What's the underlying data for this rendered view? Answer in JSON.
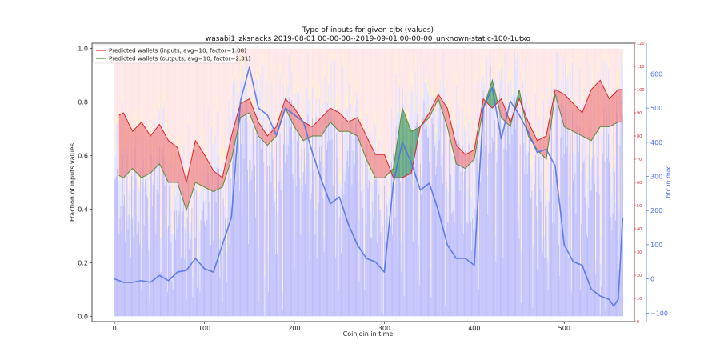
{
  "chart_data": {
    "type": "bar+line",
    "title_line1": "Type of inputs for given cjtx (values)",
    "title_line2": "wasabi1_zksnacks 2019-08-01 00-00-00--2019-09-01 00-00-00_unknown-static-100-1utxo",
    "xlabel": "Coinjoin in time",
    "ylabel": "Fraction of inputs values",
    "ylabel_right": "btc in mix",
    "xlim": [
      -25,
      578
    ],
    "ylim": [
      -0.02,
      1.02
    ],
    "ylim_red": [
      0,
      120
    ],
    "ylim_right": [
      -125,
      690
    ],
    "xticks": [
      "0",
      "100",
      "200",
      "300",
      "400",
      "500"
    ],
    "xtick_values": [
      0,
      100,
      200,
      300,
      400,
      500
    ],
    "yticks": [
      "0.0",
      "0.2",
      "0.4",
      "0.6",
      "0.8",
      "1.0"
    ],
    "ytick_values": [
      0.0,
      0.2,
      0.4,
      0.6,
      0.8,
      1.0
    ],
    "yticks_red": [
      "0",
      "10",
      "20",
      "30",
      "40",
      "50",
      "60",
      "70",
      "80",
      "90",
      "100",
      "110",
      "120"
    ],
    "ytick_red_values": [
      0,
      10,
      20,
      30,
      40,
      50,
      60,
      70,
      80,
      90,
      100,
      110,
      120
    ],
    "yticks_right": [
      "−100",
      "0",
      "100",
      "200",
      "300",
      "400",
      "500",
      "600"
    ],
    "ytick_right_values": [
      -100,
      0,
      100,
      200,
      300,
      400,
      500,
      600
    ],
    "n_coinjoins": 566,
    "legend": {
      "position": "top-left",
      "entries": [
        {
          "label": "Predicted wallets (inputs, avg=10, factor=1.08)",
          "color": "#d62728"
        },
        {
          "label": "Predicted wallets (outputs, avg=10, factor=2.31)",
          "color": "#2ca02c"
        }
      ]
    },
    "colors": {
      "bars_blue": "#7b7bf5",
      "bars_light": "#c8c8ff",
      "bars_yellow": "#ffe8a8",
      "bars_pink": "#ffcfcf",
      "inputs_line": "#d62728",
      "inputs_fill": "#f08080",
      "outputs_line": "#5b8a3a",
      "outputs_fill": "#3a9a5a",
      "btc_line": "#4a6fe3"
    },
    "series_inputs_wallets": {
      "x": [
        0,
        10,
        20,
        30,
        40,
        50,
        60,
        70,
        80,
        90,
        100,
        110,
        120,
        130,
        140,
        150,
        160,
        170,
        180,
        190,
        200,
        210,
        220,
        230,
        240,
        250,
        260,
        270,
        280,
        290,
        300,
        310,
        320,
        330,
        340,
        350,
        360,
        370,
        380,
        390,
        400,
        410,
        420,
        430,
        440,
        450,
        460,
        470,
        480,
        490,
        500,
        510,
        520,
        530,
        540,
        550,
        560
      ],
      "y": [
        88,
        90,
        82,
        86,
        80,
        85,
        78,
        75,
        60,
        78,
        72,
        65,
        62,
        80,
        94,
        96,
        86,
        80,
        84,
        96,
        92,
        86,
        84,
        88,
        92,
        90,
        86,
        88,
        80,
        72,
        72,
        62,
        62,
        64,
        84,
        90,
        98,
        92,
        76,
        72,
        74,
        96,
        92,
        96,
        86,
        96,
        86,
        78,
        80,
        100,
        98,
        94,
        90,
        100,
        104,
        96,
        100
      ]
    },
    "series_outputs_wallets": {
      "x": [
        0,
        10,
        20,
        30,
        40,
        50,
        60,
        70,
        80,
        90,
        100,
        110,
        120,
        130,
        140,
        150,
        160,
        170,
        180,
        190,
        200,
        210,
        220,
        230,
        240,
        250,
        260,
        270,
        280,
        290,
        300,
        310,
        320,
        330,
        340,
        350,
        360,
        370,
        380,
        390,
        400,
        410,
        420,
        430,
        440,
        450,
        460,
        470,
        480,
        490,
        500,
        510,
        520,
        530,
        540,
        550,
        560
      ],
      "y": [
        64,
        62,
        66,
        62,
        64,
        68,
        60,
        60,
        48,
        60,
        58,
        56,
        58,
        70,
        88,
        90,
        80,
        76,
        80,
        92,
        84,
        78,
        80,
        80,
        86,
        82,
        82,
        80,
        70,
        62,
        62,
        66,
        92,
        82,
        84,
        88,
        96,
        84,
        68,
        66,
        70,
        92,
        104,
        88,
        84,
        100,
        80,
        74,
        70,
        98,
        84,
        82,
        80,
        78,
        84,
        84,
        86
      ]
    },
    "series_btc_in_mix": {
      "x": [
        0,
        10,
        20,
        30,
        40,
        50,
        60,
        70,
        80,
        90,
        100,
        110,
        120,
        130,
        140,
        150,
        160,
        170,
        180,
        190,
        200,
        210,
        220,
        230,
        240,
        250,
        260,
        270,
        280,
        290,
        300,
        310,
        320,
        330,
        340,
        350,
        360,
        370,
        380,
        390,
        400,
        410,
        420,
        430,
        440,
        450,
        460,
        470,
        480,
        490,
        500,
        510,
        520,
        530,
        540,
        550,
        555,
        560,
        565
      ],
      "y": [
        0,
        -10,
        -10,
        -5,
        -10,
        10,
        -5,
        20,
        25,
        60,
        30,
        20,
        100,
        180,
        520,
        620,
        500,
        480,
        420,
        500,
        480,
        460,
        370,
        290,
        220,
        240,
        160,
        100,
        60,
        50,
        20,
        280,
        400,
        340,
        260,
        280,
        200,
        100,
        60,
        60,
        40,
        500,
        560,
        410,
        520,
        480,
        430,
        370,
        380,
        330,
        100,
        50,
        40,
        -30,
        -50,
        -60,
        -80,
        -60,
        180
      ]
    }
  }
}
